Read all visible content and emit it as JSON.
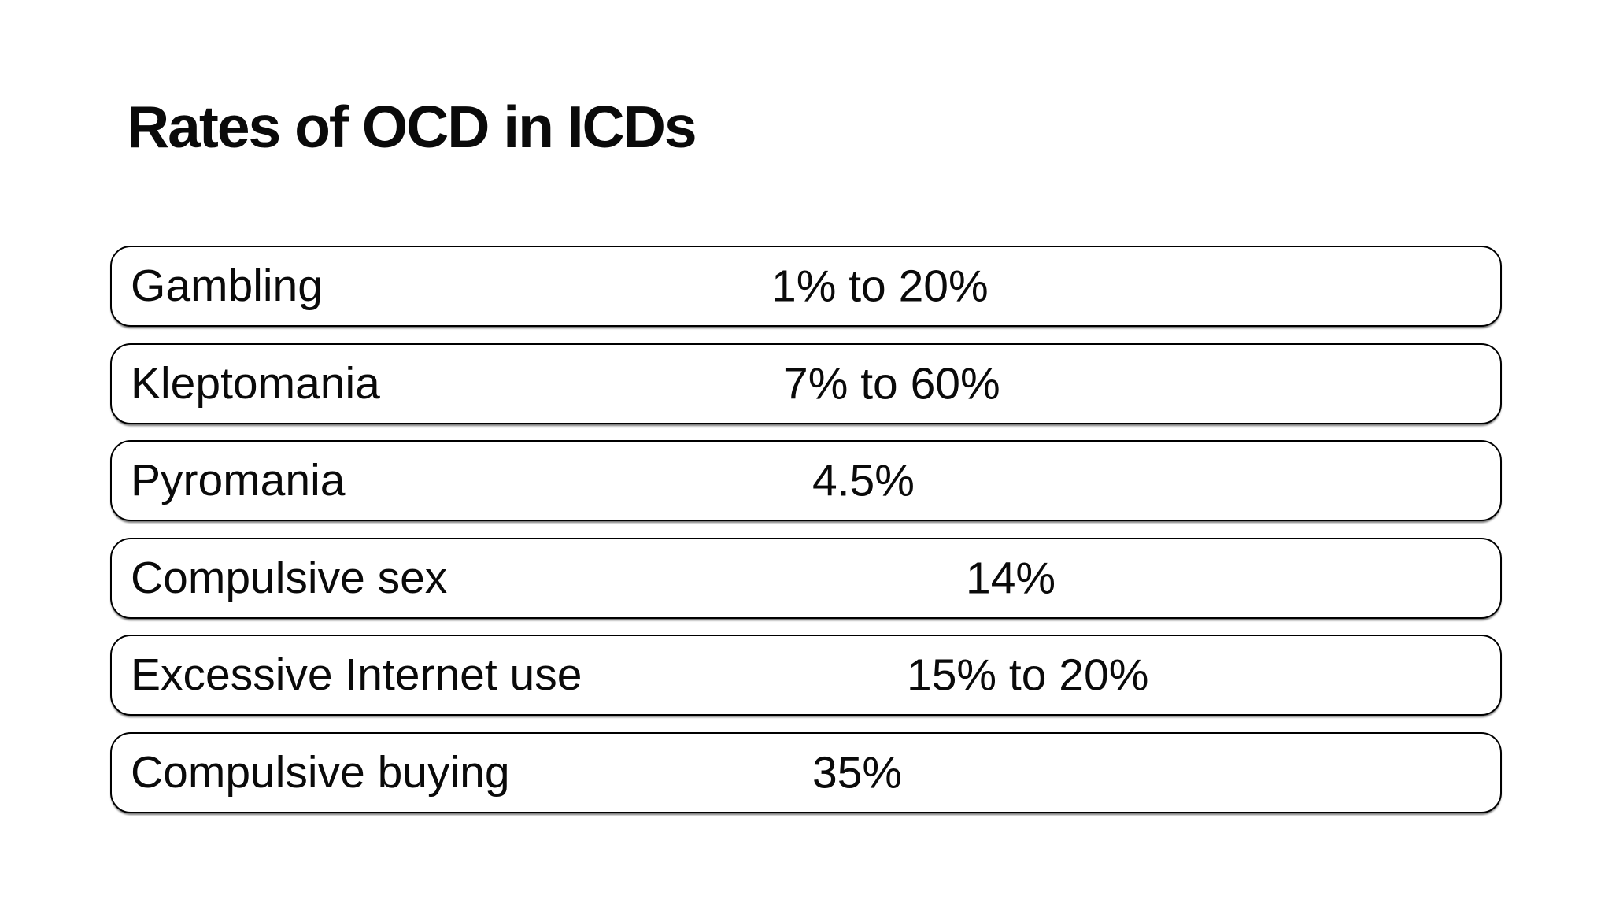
{
  "page": {
    "title": "Rates of OCD in ICDs",
    "background_color": "#ffffff",
    "text_color": "#0a0a0a",
    "border_color": "#000000"
  },
  "table": {
    "rows": [
      {
        "label": "Gambling",
        "value": "1% to 20%"
      },
      {
        "label": "Kleptomania",
        "value": "7% to 60%"
      },
      {
        "label": "Pyromania",
        "value": "4.5%"
      },
      {
        "label": "Compulsive sex",
        "value": "14%"
      },
      {
        "label": "Excessive Internet use",
        "value": "15% to 20%"
      },
      {
        "label": "Compulsive buying",
        "value": "35%"
      }
    ]
  }
}
